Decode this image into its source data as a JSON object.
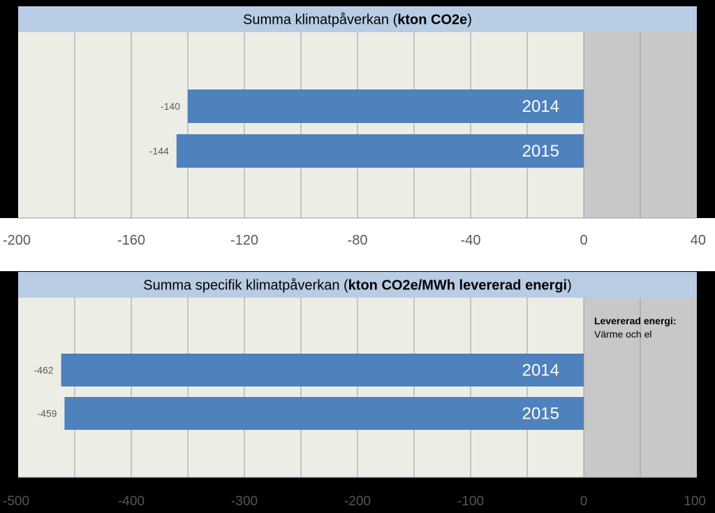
{
  "chart_data": [
    {
      "type": "bar",
      "orientation": "horizontal",
      "title": "Summa klimatpåverkan (",
      "title_bold": "kton CO2e",
      "title_end": ")",
      "categories": [
        "2014",
        "2015"
      ],
      "values": [
        -140,
        -144
      ],
      "value_labels": [
        "-140",
        "-144"
      ],
      "xlim": [
        -200,
        40
      ],
      "x_ticks": [
        -200,
        -160,
        -120,
        -80,
        -40,
        0,
        40
      ],
      "x_tick_labels": [
        "-200",
        "-160",
        "-120",
        "-80",
        "-40",
        "0",
        "40"
      ],
      "gridline_values": [
        -180,
        -160,
        -140,
        -120,
        -100,
        -80,
        -60,
        -40,
        -20,
        0,
        20
      ],
      "shaded_region": [
        0,
        40
      ],
      "annotation": null
    },
    {
      "type": "bar",
      "orientation": "horizontal",
      "title": "Summa specifik klimatpåverkan (",
      "title_bold": "kton CO2e/MWh levererad energi",
      "title_end": ")",
      "categories": [
        "2014",
        "2015"
      ],
      "values": [
        -462,
        -459
      ],
      "value_labels": [
        "-462",
        "-459"
      ],
      "xlim": [
        -500,
        100
      ],
      "x_ticks": [
        -500,
        -400,
        -300,
        -200,
        -100,
        0,
        100
      ],
      "x_tick_labels": [
        "-500",
        "-400",
        "-300",
        "-200",
        "-100",
        "0",
        "100"
      ],
      "gridline_values": [
        -450,
        -400,
        -350,
        -300,
        -250,
        -200,
        -150,
        -100,
        -50,
        0,
        50
      ],
      "shaded_region": [
        0,
        100
      ],
      "annotation": {
        "bold": "Levererad energi:",
        "text": "Värme och el"
      }
    }
  ],
  "colors": {
    "bar": "#4f81bd",
    "plot_bg": "#eceee6",
    "shaded_bg": "#c8c8c8",
    "title_bg": "#b8cce4",
    "grid": "#9c9c9c",
    "outer_bg": "#000000",
    "axis_band": "#ffffff",
    "tick_text_top": "#595959",
    "tick_text_bottom": "#555555"
  }
}
